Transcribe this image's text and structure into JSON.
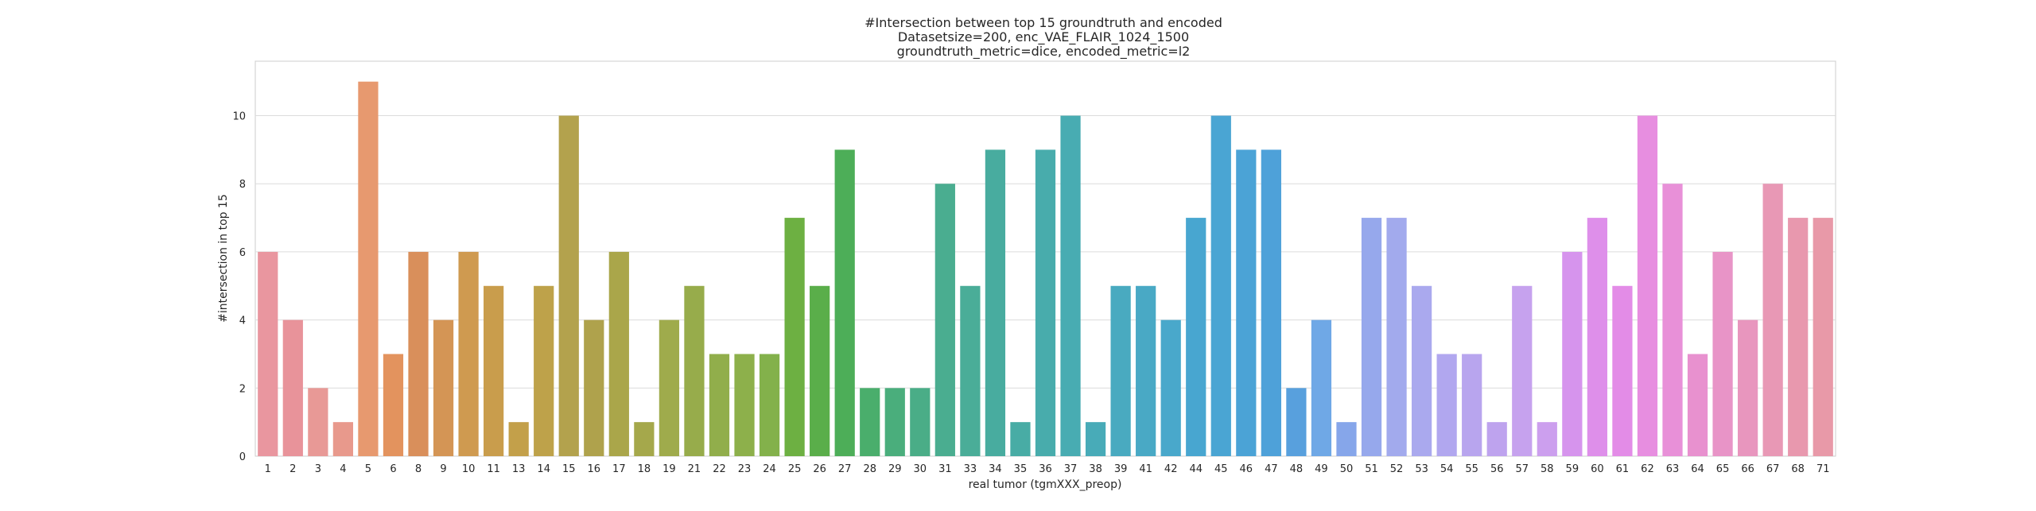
{
  "chart_data": {
    "type": "bar",
    "title_lines": [
      "#Intersection between top 15 groundtruth and encoded",
      "Datasetsize=200, enc_VAE_FLAIR_1024_1500",
      "groundtruth_metric=dice, encoded_metric=l2"
    ],
    "xlabel": "real tumor (tgmXXX_preop)",
    "ylabel": "#intersection in top 15",
    "ylim": [
      0,
      11.6
    ],
    "yticks": [
      0,
      2,
      4,
      6,
      8,
      10
    ],
    "grid": true,
    "categories": [
      "1",
      "2",
      "3",
      "4",
      "5",
      "6",
      "8",
      "9",
      "10",
      "11",
      "13",
      "14",
      "15",
      "16",
      "17",
      "18",
      "19",
      "21",
      "22",
      "23",
      "24",
      "25",
      "26",
      "27",
      "28",
      "29",
      "30",
      "31",
      "33",
      "34",
      "35",
      "36",
      "37",
      "38",
      "39",
      "41",
      "42",
      "44",
      "45",
      "46",
      "47",
      "48",
      "49",
      "50",
      "51",
      "52",
      "53",
      "54",
      "55",
      "56",
      "57",
      "58",
      "59",
      "60",
      "61",
      "62",
      "63",
      "64",
      "65",
      "66",
      "67",
      "68",
      "71"
    ],
    "values": [
      6,
      4,
      2,
      1,
      11,
      3,
      6,
      4,
      6,
      5,
      1,
      5,
      10,
      4,
      6,
      1,
      4,
      5,
      3,
      3,
      3,
      7,
      5,
      9,
      2,
      2,
      2,
      8,
      5,
      9,
      1,
      9,
      10,
      1,
      5,
      5,
      4,
      7,
      10,
      9,
      9,
      2,
      4,
      1,
      7,
      7,
      5,
      3,
      3,
      1,
      5,
      1,
      6,
      7,
      5,
      10,
      8,
      3,
      6,
      4,
      8,
      7,
      7
    ],
    "colors": [
      "#e9969f",
      "#e8939a",
      "#e89996",
      "#e8998c",
      "#e7996f",
      "#e3935e",
      "#d98f5b",
      "#d49555",
      "#cf9a50",
      "#c99d4c",
      "#c3a04a",
      "#bea24a",
      "#b3a24d",
      "#afa24c",
      "#aaa64a",
      "#a5a84b",
      "#9fab4c",
      "#97ac4b",
      "#91ae4b",
      "#8db04b",
      "#83b14b",
      "#6db042",
      "#5aae4a",
      "#4dae58",
      "#4aae6c",
      "#4aae7c",
      "#4aad87",
      "#4aad90",
      "#4aad98",
      "#48ac9f",
      "#48aca5",
      "#48acac",
      "#48acb2",
      "#48abb8",
      "#49aac0",
      "#49a9c5",
      "#49a8cb",
      "#48a6d0",
      "#4aa5d3",
      "#4ba3d6",
      "#4ea1d9",
      "#58a0dd",
      "#6fa8e6",
      "#86a6ea",
      "#96a8ec",
      "#a2aaed",
      "#aaa9ee",
      "#b1a7ef",
      "#b8a5ee",
      "#bea3ee",
      "#c6a2ee",
      "#cc9fee",
      "#d694ed",
      "#de8fea",
      "#e38ce7",
      "#e78ee0",
      "#e890d8",
      "#e891cf",
      "#e894c7",
      "#e896be",
      "#e898b5",
      "#e898ae",
      "#e899a8"
    ]
  }
}
